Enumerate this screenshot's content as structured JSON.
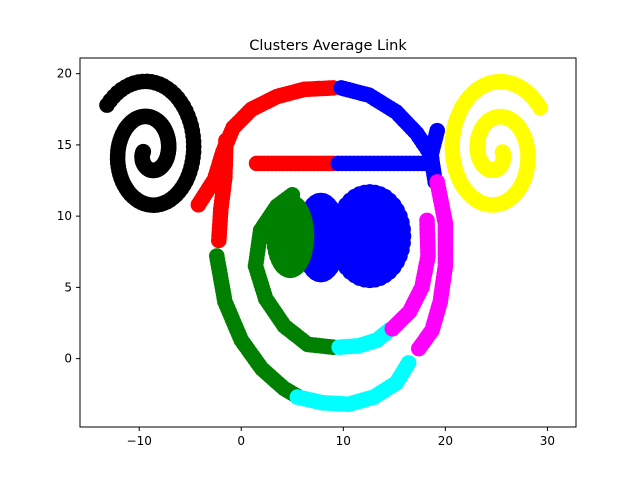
{
  "chart_data": {
    "type": "scatter",
    "title": "Clusters Average Link",
    "xlabel": "",
    "ylabel": "",
    "xlim": [
      -15.8,
      32.8
    ],
    "ylim": [
      -4.8,
      21.1
    ],
    "xticks": [
      -10,
      0,
      10,
      20,
      30
    ],
    "yticks": [
      0,
      5,
      10,
      15,
      20
    ],
    "xtick_labels": [
      "−10",
      "0",
      "10",
      "20",
      "30"
    ],
    "ytick_labels": [
      "0",
      "5",
      "10",
      "15",
      "20"
    ],
    "grid": false,
    "legend": "none",
    "series": [
      {
        "color": "#000000",
        "shape": "spiral",
        "center": [
          -9.0,
          14.5
        ],
        "radius_start": 0.6,
        "radius_end": 5.3,
        "theta_start": 3.1,
        "turns": 1.9,
        "direction": 1
      },
      {
        "color": "#ffff00",
        "shape": "spiral",
        "center": [
          25.0,
          14.5
        ],
        "radius_start": 0.6,
        "radius_end": 5.3,
        "theta_start": 0.0,
        "turns": 1.9,
        "direction": -1
      },
      {
        "color": "#ff0000",
        "shape": "polyline",
        "points": [
          [
            -4.2,
            10.8
          ],
          [
            -2.6,
            12.6
          ],
          [
            -1.8,
            14.5
          ],
          [
            -0.8,
            16.2
          ],
          [
            1.0,
            17.5
          ],
          [
            3.5,
            18.4
          ],
          [
            6.2,
            18.9
          ],
          [
            9.0,
            19.0
          ]
        ]
      },
      {
        "color": "#ff0000",
        "shape": "polyline",
        "points": [
          [
            -2.2,
            8.3
          ],
          [
            -2.0,
            10.5
          ],
          [
            -1.6,
            12.8
          ],
          [
            -1.5,
            15.3
          ]
        ]
      },
      {
        "color": "#ff0000",
        "shape": "polyline",
        "points": [
          [
            1.5,
            13.7
          ],
          [
            9.0,
            13.7
          ]
        ]
      },
      {
        "color": "#0000ff",
        "shape": "polyline",
        "points": [
          [
            9.8,
            19.0
          ],
          [
            12.5,
            18.5
          ],
          [
            15.2,
            17.3
          ],
          [
            17.2,
            15.8
          ],
          [
            18.6,
            14.3
          ]
        ]
      },
      {
        "color": "#0000ff",
        "shape": "polyline",
        "points": [
          [
            9.5,
            13.7
          ],
          [
            18.5,
            13.7
          ]
        ]
      },
      {
        "color": "#0000ff",
        "shape": "polyline",
        "points": [
          [
            19.2,
            16.0
          ],
          [
            18.6,
            14.3
          ],
          [
            19.0,
            12.4
          ]
        ]
      },
      {
        "color": "#0000ff",
        "shape": "disk",
        "center": [
          12.6,
          8.6
        ],
        "rx": 3.3,
        "ry": 3.1
      },
      {
        "color": "#0000ff",
        "shape": "disk",
        "center": [
          7.8,
          8.5
        ],
        "rx": 1.7,
        "ry": 2.6
      },
      {
        "color": "#008000",
        "shape": "disk",
        "center": [
          4.8,
          8.6
        ],
        "rx": 1.6,
        "ry": 2.4
      },
      {
        "color": "#008000",
        "shape": "polyline",
        "points": [
          [
            5.0,
            11.5
          ],
          [
            3.5,
            10.7
          ],
          [
            1.9,
            9.0
          ],
          [
            1.4,
            6.5
          ],
          [
            2.4,
            4.2
          ],
          [
            4.2,
            2.3
          ],
          [
            6.5,
            1.0
          ],
          [
            9.0,
            0.8
          ]
        ]
      },
      {
        "color": "#008000",
        "shape": "polyline",
        "points": [
          [
            -2.4,
            7.2
          ],
          [
            -1.6,
            4.0
          ],
          [
            0.0,
            1.3
          ],
          [
            2.0,
            -0.7
          ],
          [
            4.2,
            -2.1
          ],
          [
            5.4,
            -2.6
          ]
        ]
      },
      {
        "color": "#00ffff",
        "shape": "polyline",
        "points": [
          [
            5.5,
            -2.7
          ],
          [
            8.0,
            -3.1
          ],
          [
            10.5,
            -3.2
          ],
          [
            13.0,
            -2.7
          ],
          [
            15.2,
            -1.7
          ],
          [
            16.4,
            -0.3
          ]
        ]
      },
      {
        "color": "#00ffff",
        "shape": "polyline",
        "points": [
          [
            9.6,
            0.8
          ],
          [
            11.5,
            0.9
          ],
          [
            13.3,
            1.3
          ],
          [
            14.5,
            2.0
          ]
        ]
      },
      {
        "color": "#ff00ff",
        "shape": "polyline",
        "points": [
          [
            19.2,
            12.4
          ],
          [
            20.0,
            9.5
          ],
          [
            20.0,
            6.5
          ],
          [
            19.5,
            4.0
          ],
          [
            18.7,
            2.0
          ],
          [
            17.4,
            0.7
          ]
        ]
      },
      {
        "color": "#ff00ff",
        "shape": "polyline",
        "points": [
          [
            18.2,
            9.7
          ],
          [
            18.3,
            7.2
          ],
          [
            17.7,
            5.0
          ],
          [
            16.5,
            3.3
          ],
          [
            14.8,
            2.1
          ]
        ]
      }
    ]
  }
}
